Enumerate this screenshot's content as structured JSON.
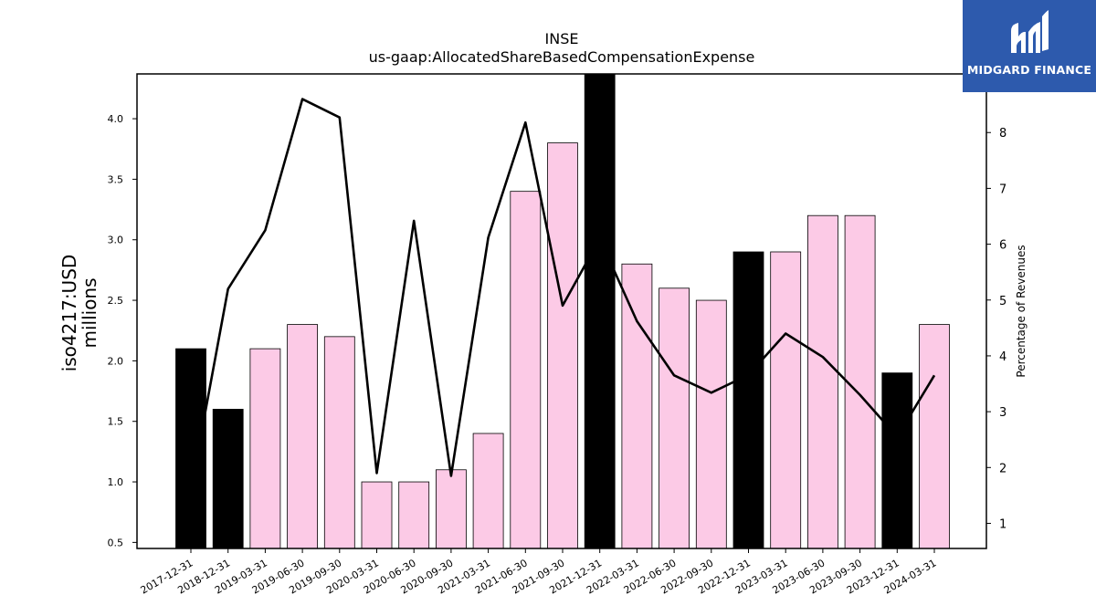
{
  "brand": {
    "name": "MIDGARD FINANCE",
    "color": "#2d5aad",
    "icon": "midgard-m-logo-icon"
  },
  "chart_data": {
    "type": "bar",
    "title": "INSE",
    "subtitle": "us-gaap:AllocatedShareBasedCompensationExpense",
    "ylabel": "iso4217:USD",
    "ylabel_unit": "millions",
    "y2label": "Percentage of Revenues",
    "ylim": [
      0.45,
      4.37
    ],
    "y2lim": [
      0.55,
      9.05
    ],
    "yticks": [
      "0.5",
      "1.0",
      "1.5",
      "2.0",
      "2.5",
      "3.0",
      "3.5",
      "4.0"
    ],
    "y2ticks": [
      "1",
      "2",
      "3",
      "4",
      "5",
      "6",
      "7",
      "8"
    ],
    "grid": false,
    "categories": [
      "2017-12-31",
      "2018-12-31",
      "2019-03-31",
      "2019-06-30",
      "2019-09-30",
      "2020-03-31",
      "2020-06-30",
      "2020-09-30",
      "2021-03-31",
      "2021-06-30",
      "2021-09-30",
      "2021-12-31",
      "2022-03-31",
      "2022-06-30",
      "2022-09-30",
      "2022-12-31",
      "2023-03-31",
      "2023-06-30",
      "2023-09-30",
      "2023-12-31",
      "2024-03-31"
    ],
    "series": [
      {
        "type": "bar",
        "values": [
          2.1,
          1.6,
          2.1,
          2.3,
          2.2,
          1.0,
          1.0,
          1.1,
          1.4,
          3.4,
          3.8,
          4.5,
          2.8,
          2.6,
          2.5,
          2.9,
          2.9,
          3.2,
          3.2,
          1.9,
          2.3
        ],
        "annual": [
          true,
          true,
          false,
          false,
          false,
          false,
          false,
          false,
          false,
          false,
          false,
          true,
          false,
          false,
          false,
          true,
          false,
          false,
          false,
          true,
          false
        ],
        "colors": {
          "annual": "#000000",
          "quarterly": "#fccae6",
          "edge": "#000000"
        }
      },
      {
        "type": "line",
        "axis": "right",
        "color": "#000000",
        "values": [
          1.6,
          5.2,
          6.25,
          8.6,
          8.27,
          1.9,
          6.42,
          1.85,
          6.12,
          8.18,
          4.9,
          6.1,
          4.62,
          3.65,
          3.34,
          3.66,
          4.4,
          3.98,
          3.3,
          2.55,
          3.65
        ]
      }
    ]
  }
}
